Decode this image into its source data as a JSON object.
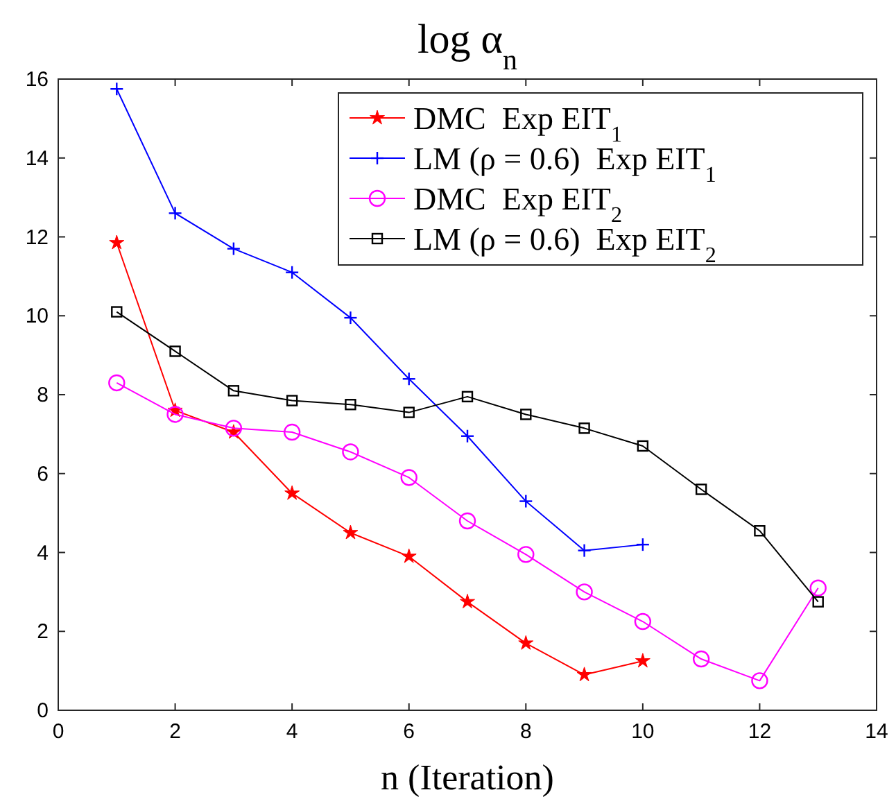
{
  "chart_data": {
    "type": "line",
    "title": "log α$_{n}$",
    "xlabel": "n (Iteration)",
    "xlim": [
      0,
      14
    ],
    "xticks": [
      0,
      2,
      4,
      6,
      8,
      10,
      12,
      14
    ],
    "ylim": [
      0,
      16
    ],
    "yticks": [
      0,
      2,
      4,
      6,
      8,
      10,
      12,
      14,
      16
    ],
    "grid": false,
    "legend": "top right",
    "series": [
      {
        "name": "DMC  Exp EIT$_{1}$",
        "color": "#ff0000",
        "marker": "star",
        "x": [
          1,
          2,
          3,
          4,
          5,
          6,
          7,
          8,
          9,
          10
        ],
        "values": [
          11.85,
          7.6,
          7.05,
          5.5,
          4.5,
          3.9,
          2.75,
          1.7,
          0.9,
          1.25
        ]
      },
      {
        "name": "LM (ρ = 0.6)  Exp EIT$_{1}$",
        "color": "#0000ff",
        "marker": "cross",
        "x": [
          1,
          2,
          3,
          4,
          5,
          6,
          7,
          8,
          9,
          10
        ],
        "values": [
          15.75,
          12.6,
          11.7,
          11.1,
          9.95,
          8.4,
          6.95,
          5.3,
          4.05,
          4.2
        ]
      },
      {
        "name": "DMC  Exp EIT$_{2}$",
        "color": "#ff00ff",
        "marker": "circle",
        "x": [
          1,
          2,
          3,
          4,
          5,
          6,
          7,
          8,
          9,
          10,
          11,
          12,
          13
        ],
        "values": [
          8.3,
          7.5,
          7.15,
          7.05,
          6.55,
          5.9,
          4.8,
          3.95,
          3.0,
          2.25,
          1.3,
          0.75,
          3.1
        ]
      },
      {
        "name": "LM (ρ = 0.6)  Exp EIT$_{2}$",
        "color": "#000000",
        "marker": "square",
        "x": [
          1,
          2,
          3,
          4,
          5,
          6,
          7,
          8,
          9,
          10,
          11,
          12,
          13
        ],
        "values": [
          10.1,
          9.1,
          8.1,
          7.85,
          7.75,
          7.55,
          7.95,
          7.5,
          7.15,
          6.7,
          5.6,
          4.55,
          2.75
        ]
      }
    ]
  }
}
